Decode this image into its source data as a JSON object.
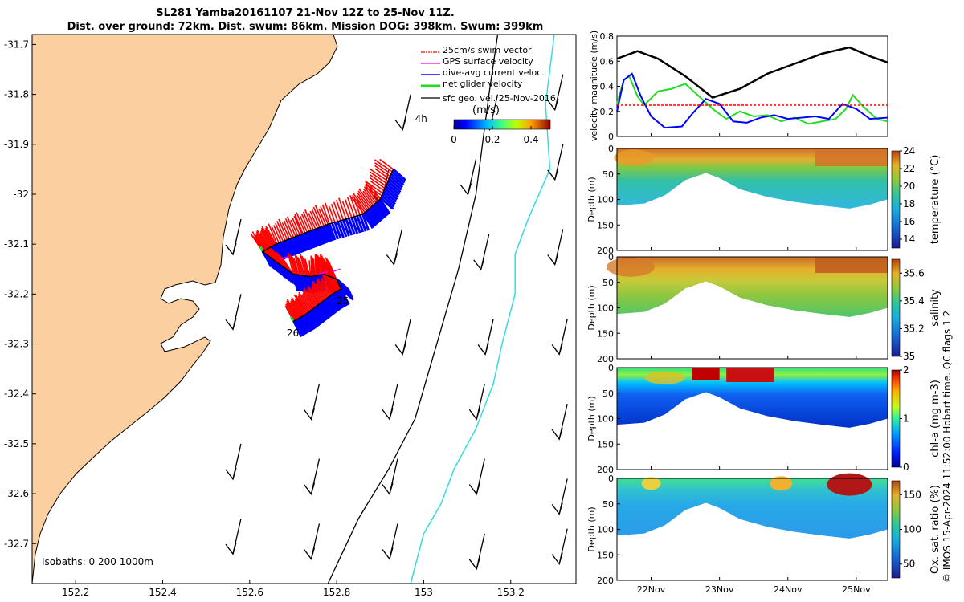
{
  "header": {
    "line1": "SL281 Yamba20161107 21-Nov 12Z to 25-Nov 11Z.",
    "line2": "Dist. over ground: 72km. Dist. swum: 86km. Mission DOG: 398km. Swum: 399km"
  },
  "credit": "© IMOS 15-Apr-2024 11:52:00 Hobart time. QC flags 1  2",
  "colors": {
    "land": "#FBCFA0",
    "swim": "#FF0000",
    "gps": "#FF00FF",
    "current": "#0000FF",
    "net": "#22DD22",
    "geo": "#000000",
    "isobath200": "#000000",
    "isobath1000": "#33DDDD"
  },
  "chart_data": [
    {
      "type": "map",
      "xlim": [
        152.1,
        153.35
      ],
      "ylim": [
        -32.78,
        -31.68
      ],
      "xticks": [
        "152.2",
        "152.4",
        "152.6",
        "152.8",
        "153",
        "153.2"
      ],
      "xtick_values": [
        152.2,
        152.4,
        152.6,
        152.8,
        153.0,
        153.2
      ],
      "yticks": [
        "-31.7",
        "-31.8",
        "-31.9",
        "-32",
        "-32.1",
        "-32.2",
        "-32.3",
        "-32.4",
        "-32.5",
        "-32.6",
        "-32.7"
      ],
      "ytick_values": [
        -31.7,
        -31.8,
        -31.9,
        -32.0,
        -32.1,
        -32.2,
        -32.3,
        -32.4,
        -32.5,
        -32.6,
        -32.7
      ],
      "legend": {
        "placement": "top-right",
        "entries": [
          "25cm/s swim vector",
          "GPS surface velocity",
          "dive-avg current veloc.",
          "net glider velocity",
          "sfc geo. vel. 25-Nov-2016"
        ]
      },
      "colorbar": {
        "label": "(m/s)",
        "ticks": [
          "0",
          "0.2",
          "0.4"
        ],
        "range": [
          0,
          0.5
        ]
      },
      "annotations": [
        {
          "text": "4h",
          "lon": 152.98,
          "lat": -31.855
        },
        {
          "text": "25",
          "lon": 152.8,
          "lat": -32.22
        },
        {
          "text": "26",
          "lon": 152.685,
          "lat": -32.285
        }
      ],
      "isobaths_label": "Isobaths: 0   200  1000m",
      "glider_track": [
        [
          152.93,
          -31.95
        ],
        [
          152.9,
          -32.01
        ],
        [
          152.86,
          -32.04
        ],
        [
          152.78,
          -32.06
        ],
        [
          152.72,
          -32.08
        ],
        [
          152.66,
          -32.1
        ],
        [
          152.63,
          -32.115
        ],
        [
          152.66,
          -32.135
        ],
        [
          152.7,
          -32.16
        ],
        [
          152.74,
          -32.165
        ],
        [
          152.77,
          -32.16
        ],
        [
          152.8,
          -32.17
        ],
        [
          152.81,
          -32.19
        ],
        [
          152.79,
          -32.2
        ],
        [
          152.76,
          -32.22
        ],
        [
          152.73,
          -32.24
        ],
        [
          152.7,
          -32.255
        ]
      ],
      "isobath_200": [
        [
          153.17,
          -31.68
        ],
        [
          153.15,
          -31.8
        ],
        [
          153.12,
          -32.0
        ],
        [
          153.08,
          -32.15
        ],
        [
          153.03,
          -32.3
        ],
        [
          152.98,
          -32.45
        ],
        [
          152.92,
          -32.55
        ],
        [
          152.85,
          -32.65
        ],
        [
          152.78,
          -32.78
        ]
      ],
      "isobath_1000": [
        [
          153.3,
          -31.68
        ],
        [
          153.28,
          -31.82
        ],
        [
          153.29,
          -31.95
        ],
        [
          153.24,
          -32.05
        ],
        [
          153.21,
          -32.12
        ],
        [
          153.21,
          -32.2
        ],
        [
          153.18,
          -32.3
        ],
        [
          153.16,
          -32.38
        ],
        [
          153.12,
          -32.47
        ],
        [
          153.07,
          -32.55
        ],
        [
          153.04,
          -32.62
        ],
        [
          153.0,
          -32.68
        ],
        [
          152.97,
          -32.78
        ]
      ],
      "geo_vectors": [
        [
          152.97,
          -31.8
        ],
        [
          153.17,
          -31.8
        ],
        [
          153.32,
          -31.76
        ],
        [
          152.92,
          -31.95
        ],
        [
          153.12,
          -31.93
        ],
        [
          153.32,
          -31.9
        ],
        [
          152.58,
          -32.05
        ],
        [
          152.95,
          -32.07
        ],
        [
          153.15,
          -32.08
        ],
        [
          153.32,
          -32.07
        ],
        [
          152.58,
          -32.2
        ],
        [
          152.97,
          -32.25
        ],
        [
          153.16,
          -32.25
        ],
        [
          153.33,
          -32.25
        ],
        [
          152.76,
          -32.38
        ],
        [
          152.94,
          -32.38
        ],
        [
          153.14,
          -32.38
        ],
        [
          153.33,
          -32.42
        ],
        [
          152.58,
          -32.5
        ],
        [
          152.76,
          -32.53
        ],
        [
          152.94,
          -32.53
        ],
        [
          153.14,
          -32.53
        ],
        [
          153.33,
          -32.57
        ],
        [
          152.58,
          -32.65
        ],
        [
          152.76,
          -32.66
        ],
        [
          152.94,
          -32.66
        ],
        [
          153.14,
          -32.68
        ],
        [
          153.33,
          -32.67
        ]
      ]
    },
    {
      "type": "line",
      "ylabel": "velocity magnitude (m/s)",
      "ylim": [
        0,
        0.8
      ],
      "yticks": [
        "0",
        "0.2",
        "0.4",
        "0.6",
        "0.8"
      ],
      "ytick_values": [
        0,
        0.2,
        0.4,
        0.6,
        0.8
      ],
      "xlim": [
        21.5,
        25.46
      ],
      "series": [
        {
          "color": "#000000",
          "x": [
            21.5,
            21.8,
            22.1,
            22.5,
            22.9,
            23.3,
            23.7,
            24.1,
            24.5,
            24.9,
            25.2,
            25.46
          ],
          "values": [
            0.62,
            0.68,
            0.62,
            0.48,
            0.31,
            0.38,
            0.5,
            0.58,
            0.66,
            0.71,
            0.64,
            0.59
          ]
        },
        {
          "color": "#22DD22",
          "x": [
            21.5,
            21.6,
            21.68,
            21.8,
            21.9,
            22.1,
            22.3,
            22.5,
            22.7,
            22.9,
            23.1,
            23.3,
            23.5,
            23.7,
            23.9,
            24.1,
            24.3,
            24.5,
            24.7,
            24.85,
            24.95,
            25.1,
            25.3,
            25.46
          ],
          "values": [
            0.26,
            0.45,
            0.48,
            0.32,
            0.25,
            0.36,
            0.38,
            0.42,
            0.32,
            0.22,
            0.14,
            0.2,
            0.16,
            0.17,
            0.12,
            0.15,
            0.1,
            0.12,
            0.14,
            0.22,
            0.33,
            0.24,
            0.14,
            0.12
          ]
        },
        {
          "color": "#0000FF",
          "x": [
            21.5,
            21.6,
            21.72,
            21.85,
            22.0,
            22.2,
            22.45,
            22.6,
            22.8,
            23.0,
            23.2,
            23.4,
            23.6,
            23.8,
            24.0,
            24.2,
            24.4,
            24.6,
            24.8,
            25.0,
            25.2,
            25.46
          ],
          "values": [
            0.2,
            0.45,
            0.5,
            0.32,
            0.16,
            0.07,
            0.08,
            0.18,
            0.3,
            0.26,
            0.12,
            0.11,
            0.15,
            0.17,
            0.14,
            0.15,
            0.16,
            0.14,
            0.26,
            0.22,
            0.14,
            0.15
          ]
        },
        {
          "color": "#FF0000",
          "x": [
            21.5,
            25.46
          ],
          "values": [
            0.25,
            0.25
          ]
        }
      ]
    },
    {
      "type": "heatmap",
      "ylabel": "Depth (m)",
      "colorbar_label": "temperature (°C)",
      "colorbar_ticks": [
        "14",
        "16",
        "18",
        "20",
        "22",
        "24"
      ],
      "colorbar_values": [
        14,
        16,
        18,
        20,
        22,
        24
      ],
      "range": [
        13,
        24
      ],
      "ylim": [
        200,
        0
      ],
      "yticks": [
        "0",
        "50",
        "100",
        "150",
        "200"
      ],
      "ytick_values": [
        0,
        50,
        100,
        150,
        200
      ]
    },
    {
      "type": "heatmap",
      "ylabel": "Depth (m)",
      "colorbar_label": "salinity",
      "colorbar_ticks": [
        "35",
        "35.2",
        "35.4",
        "35.6"
      ],
      "colorbar_values": [
        35,
        35.2,
        35.4,
        35.6
      ],
      "range": [
        35,
        35.7
      ],
      "ylim": [
        200,
        0
      ],
      "yticks": [
        "0",
        "50",
        "100",
        "150",
        "200"
      ],
      "ytick_values": [
        0,
        50,
        100,
        150,
        200
      ]
    },
    {
      "type": "heatmap",
      "ylabel": "Depth (m)",
      "colorbar_label": "chl-a (mg m-3)",
      "colorbar_ticks": [
        "0",
        "1",
        "2"
      ],
      "colorbar_values": [
        0,
        1,
        2
      ],
      "range": [
        0,
        2
      ],
      "ylim": [
        200,
        0
      ],
      "yticks": [
        "0",
        "50",
        "100",
        "150",
        "200"
      ],
      "ytick_values": [
        0,
        50,
        100,
        150,
        200
      ]
    },
    {
      "type": "heatmap",
      "ylabel": "Depth (m)",
      "colorbar_label": "Ox. sat. ratio (%)",
      "colorbar_ticks": [
        "50",
        "100",
        "150"
      ],
      "colorbar_values": [
        50,
        100,
        150
      ],
      "range": [
        30,
        170
      ],
      "ylim": [
        200,
        0
      ],
      "yticks": [
        "0",
        "50",
        "100",
        "150",
        "200"
      ],
      "ytick_values": [
        0,
        50,
        100,
        150,
        200
      ],
      "xticks": [
        "22Nov",
        "23Nov",
        "24Nov",
        "25Nov"
      ],
      "xtick_values": [
        22,
        23,
        24,
        25
      ]
    }
  ]
}
